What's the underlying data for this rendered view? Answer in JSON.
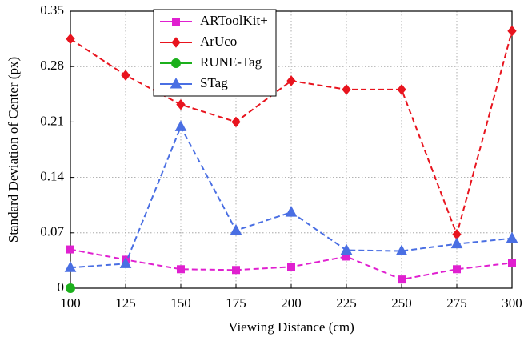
{
  "chart_data": {
    "type": "line",
    "xlabel": "Viewing Distance (cm)",
    "ylabel": "Standard Deviation of Center (px)",
    "x": [
      100,
      125,
      150,
      175,
      200,
      225,
      250,
      275,
      300
    ],
    "xlim": [
      100,
      300
    ],
    "xticks": [
      100,
      125,
      150,
      175,
      200,
      225,
      250,
      275,
      300
    ],
    "ylim": [
      0,
      0.35
    ],
    "yticks": [
      0,
      0.07,
      0.14,
      0.21,
      0.28,
      0.35
    ],
    "grid": true,
    "legend": "upper left",
    "series": [
      {
        "name": "ARToolKit+",
        "color": "#e020d0",
        "marker": "square",
        "values": [
          0.049,
          0.036,
          0.024,
          0.023,
          0.027,
          0.04,
          0.011,
          0.024,
          0.032
        ]
      },
      {
        "name": "ArUco",
        "color": "#e8141e",
        "marker": "diamond",
        "values": [
          0.315,
          0.269,
          0.232,
          0.21,
          0.262,
          0.251,
          0.251,
          0.068,
          0.325
        ]
      },
      {
        "name": "RUNE-Tag",
        "color": "#1cb01c",
        "marker": "circle",
        "values": [
          0,
          null,
          null,
          null,
          null,
          null,
          null,
          null,
          null
        ]
      },
      {
        "name": "STag",
        "color": "#4a6fe3",
        "marker": "triangle",
        "values": [
          0.026,
          0.031,
          0.204,
          0.073,
          0.096,
          0.048,
          0.047,
          0.056,
          0.063
        ]
      }
    ]
  }
}
